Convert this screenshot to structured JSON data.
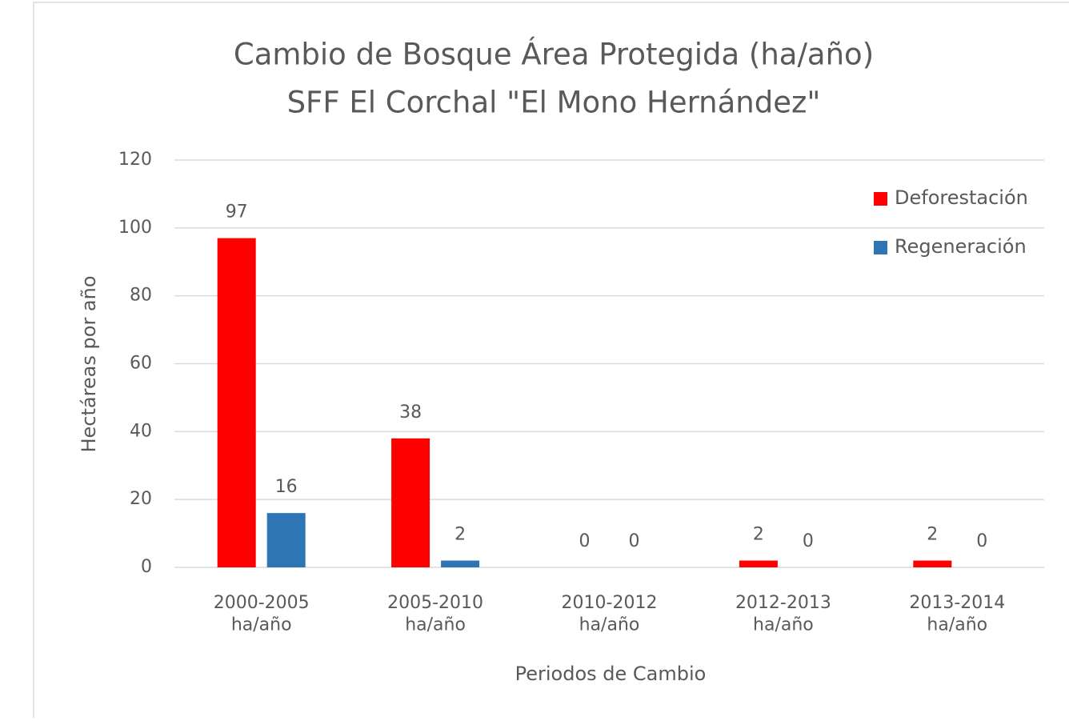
{
  "chart_data": {
    "type": "bar",
    "title": "Cambio de Bosque Área Protegida (ha/año)",
    "subtitle": "SFF El Corchal \"El Mono Hernández\"",
    "y_axis_label": "Hectáreas por año",
    "x_axis_label": "Periodos de Cambio",
    "categories": [
      "2000-2005\nha/año",
      "2005-2010\nha/año",
      "2010-2012\nha/año",
      "2012-2013\nha/año",
      "2013-2014\nha/año"
    ],
    "series": [
      {
        "name": "Deforestación",
        "color": "#ff0000",
        "values": [
          97,
          38,
          0,
          2,
          2
        ]
      },
      {
        "name": "Regeneración",
        "color": "#2e75b6",
        "values": [
          16,
          2,
          0,
          0,
          0
        ]
      }
    ],
    "ylim": [
      0,
      120
    ],
    "yticks": [
      0,
      20,
      40,
      60,
      80,
      100,
      120
    ],
    "grid": true,
    "legend": "top-right"
  }
}
